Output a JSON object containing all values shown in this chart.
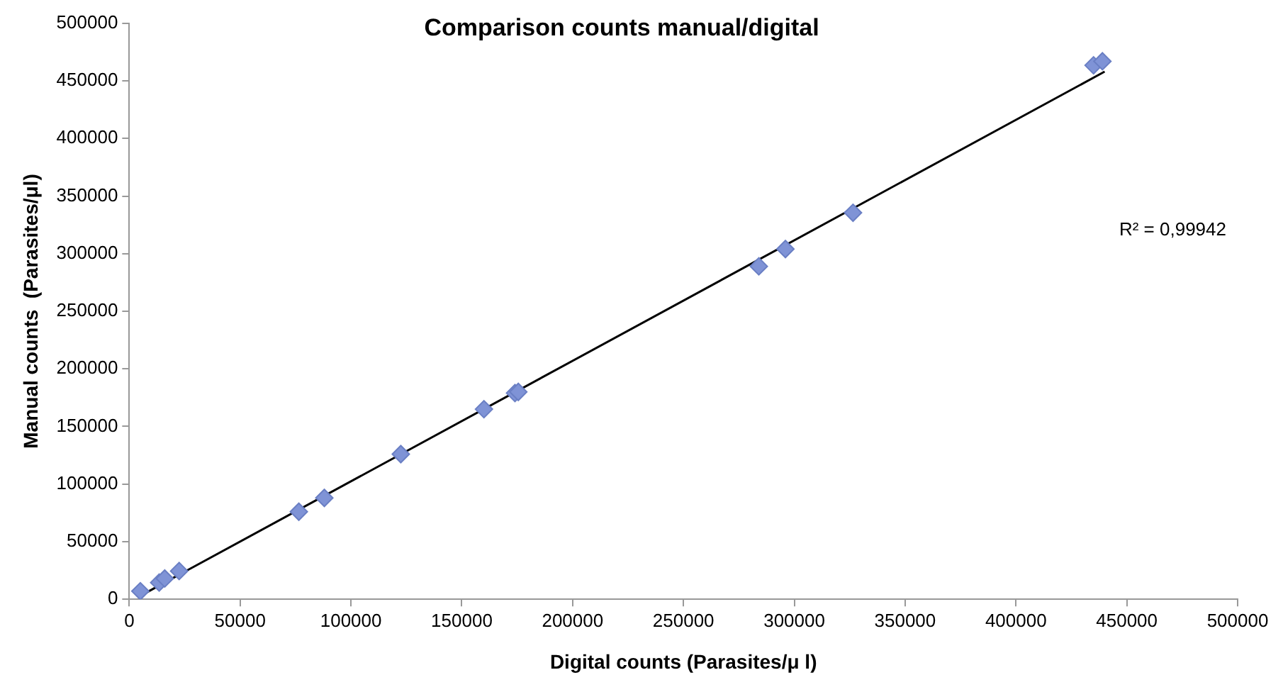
{
  "chart_data": {
    "type": "scatter",
    "title": "Comparison counts manual/digital",
    "xlabel": "Digital counts (Parasites/μ l)",
    "ylabel": "Manual counts  (Parasites/μl)",
    "annotations": [
      "R² = 0,99942"
    ],
    "xlim": [
      0,
      500000
    ],
    "xticks": [
      0,
      50000,
      100000,
      150000,
      200000,
      250000,
      300000,
      350000,
      400000,
      450000,
      500000
    ],
    "ylim": [
      0,
      500000
    ],
    "yticks": [
      0,
      50000,
      100000,
      150000,
      200000,
      250000,
      300000,
      350000,
      400000,
      450000,
      500000
    ],
    "grid": false,
    "legend": false,
    "marker": "diamond",
    "series": [
      {
        "color": "#7f93d6",
        "x": [
          5000,
          13500,
          16000,
          22500,
          76500,
          88000,
          122500,
          160000,
          174000,
          175500,
          284000,
          296000,
          326500,
          435000,
          439000
        ],
        "values": [
          7000,
          14500,
          18000,
          24500,
          76000,
          88000,
          126000,
          165000,
          179000,
          180000,
          289000,
          304000,
          335500,
          463500,
          467000
        ]
      },
      {
        "type": "line",
        "color": "#000000",
        "marker": "none",
        "line_style": "solid",
        "x": [
          5000,
          440000
        ],
        "values": [
          3000,
          458000
        ]
      }
    ]
  }
}
